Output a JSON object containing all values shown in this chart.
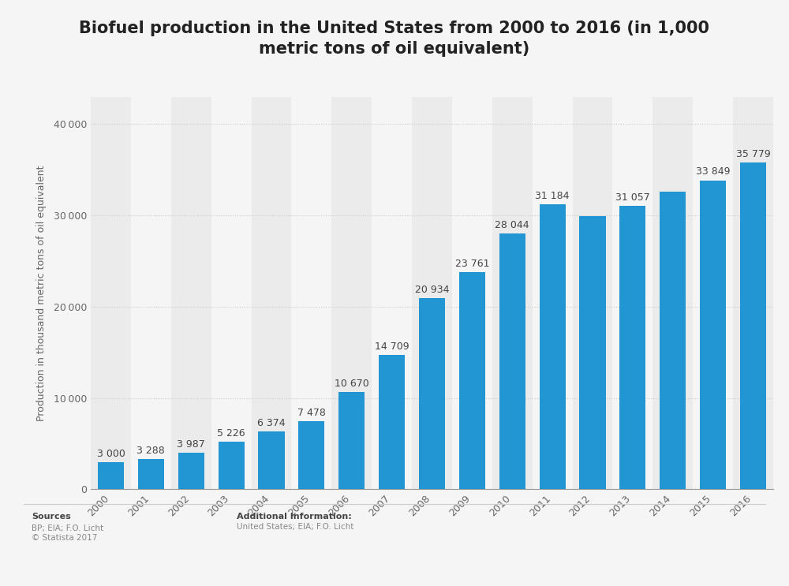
{
  "title": "Biofuel production in the United States from 2000 to 2016 (in 1,000\nmetric tons of oil equivalent)",
  "ylabel": "Production in thousand metric tons of oil equivalent",
  "years": [
    "2000",
    "2001",
    "2002",
    "2003",
    "2004",
    "2005",
    "2006",
    "2007",
    "2008",
    "2009",
    "2010",
    "2011",
    "2012",
    "2013",
    "2014",
    "2015",
    "2016"
  ],
  "values": [
    3000,
    3288,
    3987,
    5226,
    6374,
    7478,
    10670,
    14709,
    20934,
    23761,
    28044,
    31184,
    29901,
    31057,
    32572,
    33849,
    35779
  ],
  "labels": [
    "3 000",
    "3 288",
    "3 987",
    "5 226",
    "6 374",
    "7 478",
    "10 670",
    "14 709",
    "20 934",
    "23 761",
    "28 044",
    "31 184",
    "",
    "31 057",
    "",
    "33 849",
    "35 779"
  ],
  "bar_color": "#2196d3",
  "bg_color": "#f5f5f5",
  "plot_bg_color_light": "#f5f5f5",
  "plot_bg_color_dark": "#ebebeb",
  "grid_color": "#cccccc",
  "yticks": [
    0,
    10000,
    20000,
    30000,
    40000
  ],
  "ylim": [
    0,
    43000
  ],
  "sources_label": "Sources",
  "sources_text": "BP; EIA; F.O. Licht\n© Statista 2017",
  "additional_label": "Additional Information:",
  "additional_text": "United States; EIA; F.O. Licht",
  "title_fontsize": 15,
  "label_fontsize": 9,
  "axis_fontsize": 9,
  "ylabel_fontsize": 9
}
